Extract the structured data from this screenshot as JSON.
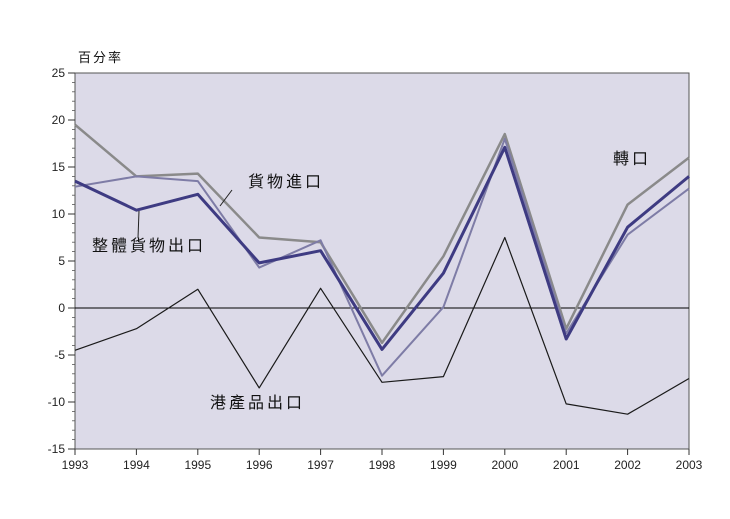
{
  "chart_data": {
    "type": "line",
    "ylabel": "百分率",
    "xlabel": "",
    "title": "",
    "x": [
      "1993",
      "1994",
      "1995",
      "1996",
      "1997",
      "1998",
      "1999",
      "2000",
      "2001",
      "2002",
      "2003"
    ],
    "ylim": [
      -15,
      25
    ],
    "yticks": [
      -15,
      -10,
      -5,
      0,
      5,
      10,
      15,
      20,
      25
    ],
    "grid": false,
    "background": "#dcdae8",
    "series": [
      {
        "name": "轉口",
        "color": "#8a8a8a",
        "width": 2.5,
        "values": [
          19.5,
          14.0,
          14.3,
          7.5,
          7.0,
          -3.7,
          5.5,
          18.5,
          -2.2,
          11.0,
          16.0
        ]
      },
      {
        "name": "貨物進口",
        "color": "#7e7ca6",
        "width": 2.0,
        "values": [
          12.9,
          14.0,
          13.5,
          4.3,
          7.2,
          -7.2,
          0.1,
          18.0,
          -2.7,
          7.8,
          12.7
        ]
      },
      {
        "name": "整體貨物出口",
        "color": "#3e3b82",
        "width": 3.0,
        "values": [
          13.5,
          10.4,
          12.1,
          4.8,
          6.1,
          -4.4,
          3.7,
          17.1,
          -3.3,
          8.6,
          14.0
        ]
      },
      {
        "name": "港產品出口",
        "color": "#1a1a1a",
        "width": 1.2,
        "values": [
          -4.5,
          -2.2,
          2.0,
          -8.5,
          2.1,
          -7.9,
          -7.3,
          7.5,
          -10.2,
          -11.3,
          -7.5
        ]
      }
    ],
    "annotations": [
      {
        "text": "轉口"
      },
      {
        "text": "貨物進口"
      },
      {
        "text": "整體貨物出口"
      },
      {
        "text": "港產品出口"
      }
    ]
  }
}
